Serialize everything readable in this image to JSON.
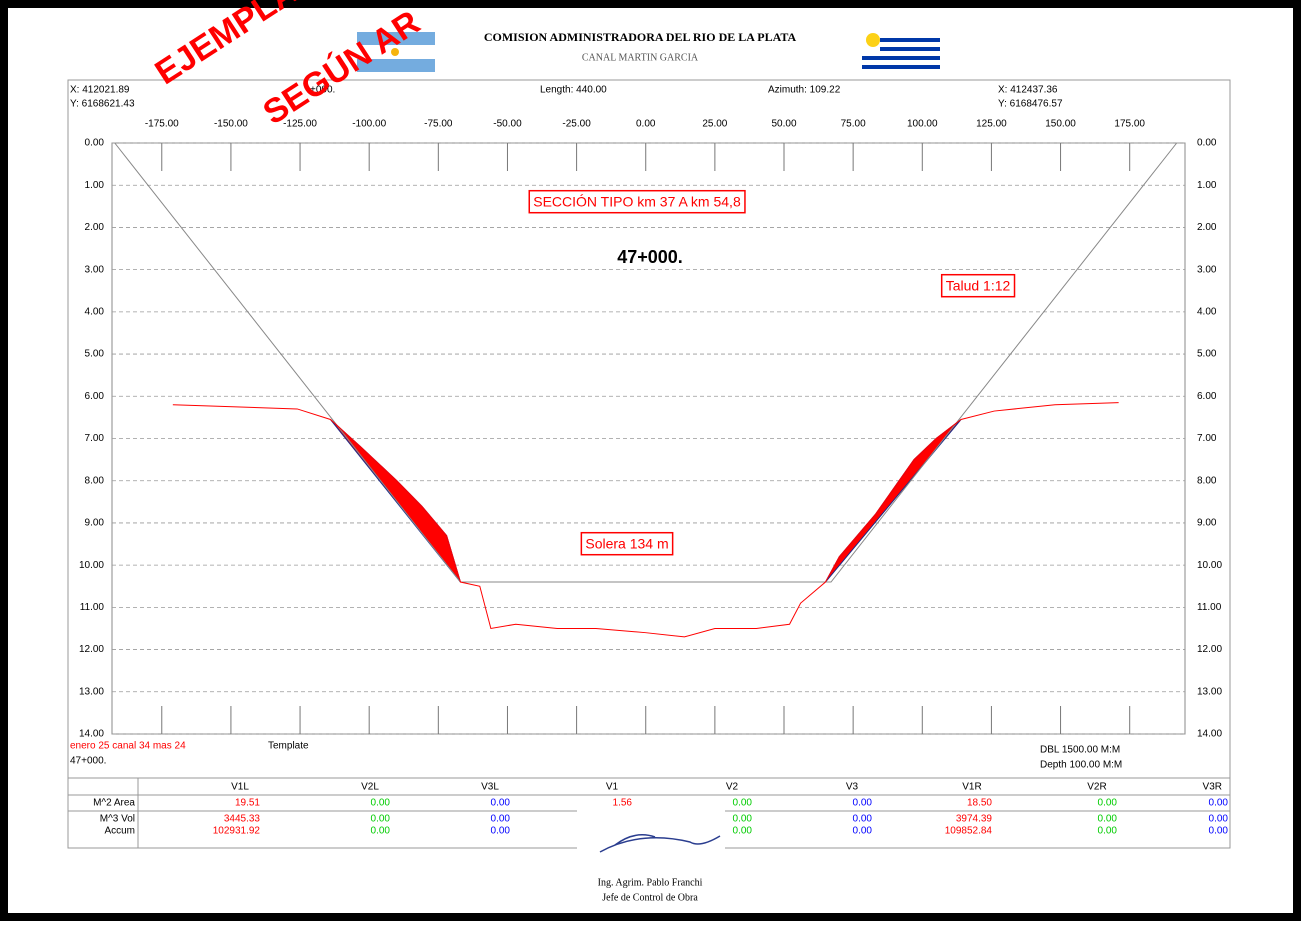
{
  "header": {
    "title": "COMISION ADMINISTRADORA DEL RIO DE LA PLATA",
    "subtitle": "CANAL MARTIN GARCIA"
  },
  "watermark": [
    "EJEMPLA",
    "SEGÚN AR"
  ],
  "info": {
    "start_x": "X: 412021.89",
    "start_y": "Y: 6168621.43",
    "station": "+000.",
    "length": "Length: 440.00",
    "azimuth": "Azimuth: 109.22",
    "end_x": "X: 412437.36",
    "end_y": "Y: 6168476.57"
  },
  "chart_data": {
    "type": "line",
    "annotations": [
      "SECCIÓN TIPO  km 37 A km 54,8",
      "47+000.",
      "Talud 1:12",
      "Solera 134 m"
    ],
    "xlim": [
      -193,
      195
    ],
    "ylim": [
      0,
      14
    ],
    "grid": true,
    "xticks": [
      {
        "value": -175,
        "label": "-175.00"
      },
      {
        "value": -150,
        "label": "-150.00"
      },
      {
        "value": -125,
        "label": "-125.00"
      },
      {
        "value": -100,
        "label": "-100.00"
      },
      {
        "value": -75,
        "label": "-75.00"
      },
      {
        "value": -50,
        "label": "-50.00"
      },
      {
        "value": -25,
        "label": "-25.00"
      },
      {
        "value": 0,
        "label": "0.00"
      },
      {
        "value": 25,
        "label": "25.00"
      },
      {
        "value": 50,
        "label": "50.00"
      },
      {
        "value": 75,
        "label": "75.00"
      },
      {
        "value": 100,
        "label": "100.00"
      },
      {
        "value": 125,
        "label": "125.00"
      },
      {
        "value": 150,
        "label": "150.00"
      },
      {
        "value": 175,
        "label": "175.00"
      }
    ],
    "yticks": [
      {
        "value": 0,
        "label": "0.00"
      },
      {
        "value": 1,
        "label": "1.00"
      },
      {
        "value": 2,
        "label": "2.00"
      },
      {
        "value": 3,
        "label": "3.00"
      },
      {
        "value": 4,
        "label": "4.00"
      },
      {
        "value": 5,
        "label": "5.00"
      },
      {
        "value": 6,
        "label": "6.00"
      },
      {
        "value": 7,
        "label": "7.00"
      },
      {
        "value": 8,
        "label": "8.00"
      },
      {
        "value": 9,
        "label": "9.00"
      },
      {
        "value": 10,
        "label": "10.00"
      },
      {
        "value": 11,
        "label": "11.00"
      },
      {
        "value": 12,
        "label": "12.00"
      },
      {
        "value": 13,
        "label": "13.00"
      },
      {
        "value": 14,
        "label": "14.00"
      }
    ],
    "series": [
      {
        "color": "#888888",
        "x": [
          -192,
          -67,
          67,
          192
        ],
        "values": [
          0,
          10.4,
          10.4,
          0
        ]
      },
      {
        "color": "#ff0000",
        "x": [
          -171,
          -126,
          -114,
          -103,
          -90,
          -81,
          -72,
          -67,
          -60,
          -56,
          -47,
          -32,
          -18,
          0,
          14,
          25,
          40,
          52,
          56,
          65,
          70,
          83,
          97,
          105,
          114,
          126,
          148,
          171
        ],
        "values": [
          6.2,
          6.3,
          6.55,
          7.2,
          8.0,
          8.6,
          9.3,
          10.4,
          10.5,
          11.5,
          11.4,
          11.5,
          11.5,
          11.6,
          11.7,
          11.5,
          11.5,
          11.4,
          10.9,
          10.4,
          9.8,
          8.8,
          7.5,
          7.0,
          6.55,
          6.35,
          6.2,
          6.15
        ]
      }
    ]
  },
  "footer": {
    "file": "enero 25 canal 34 mas 24",
    "station": "47+000.",
    "template": "Template",
    "dbl": "DBL 1500.00 M:M",
    "depth": "Depth 100.00 M:M"
  },
  "table": {
    "columns": [
      "V1L",
      "V2L",
      "V3L",
      "V1",
      "V2",
      "V3",
      "V1R",
      "V2R",
      "V3R"
    ],
    "rows": [
      {
        "label": "M^2 Area",
        "cells": [
          "19.51",
          "0.00",
          "0.00",
          "1.56",
          "0.00",
          "0.00",
          "18.50",
          "0.00",
          "0.00"
        ]
      },
      {
        "label": "M^3 Vol",
        "cells": [
          "3445.33",
          "0.00",
          "0.00",
          null,
          "0.00",
          "0.00",
          "3974.39",
          "0.00",
          "0.00"
        ]
      },
      {
        "label": "Accum",
        "cells": [
          "102931.92",
          "0.00",
          "0.00",
          null,
          "0.00",
          "0.00",
          "109852.84",
          "0.00",
          "0.00"
        ]
      }
    ]
  },
  "signature": {
    "name": "Ing. Agrim. Pablo Franchi",
    "role": "Jefe de Control de Obra"
  }
}
